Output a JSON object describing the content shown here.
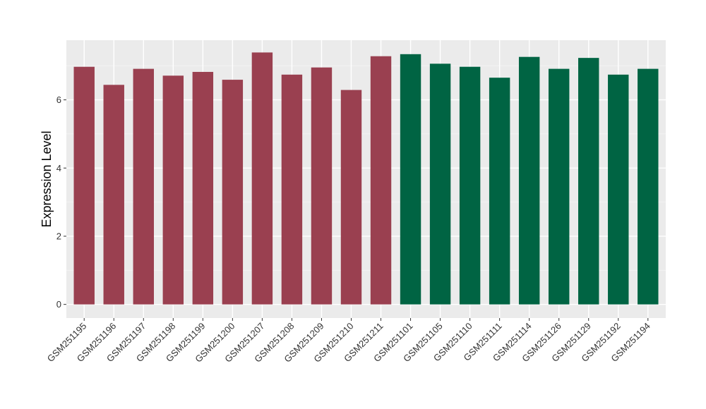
{
  "chart_data": {
    "type": "bar",
    "title": "",
    "xlabel": "",
    "ylabel": "Expression Level",
    "ylim": [
      -0.4,
      7.75
    ],
    "yticks": [
      0,
      2,
      4,
      6
    ],
    "grid": true,
    "background": "#EBEBEB",
    "categories": [
      "GSM251195",
      "GSM251196",
      "GSM251197",
      "GSM251198",
      "GSM251199",
      "GSM251200",
      "GSM251207",
      "GSM251208",
      "GSM251209",
      "GSM251210",
      "GSM251211",
      "GSM251101",
      "GSM251105",
      "GSM251110",
      "GSM251111",
      "GSM251114",
      "GSM251126",
      "GSM251129",
      "GSM251192",
      "GSM251194"
    ],
    "values": [
      6.97,
      6.44,
      6.91,
      6.71,
      6.82,
      6.59,
      7.39,
      6.74,
      6.95,
      6.29,
      7.28,
      7.34,
      7.06,
      6.97,
      6.65,
      7.26,
      6.91,
      7.23,
      6.74,
      6.91
    ],
    "groups": [
      "a",
      "a",
      "a",
      "a",
      "a",
      "a",
      "a",
      "a",
      "a",
      "a",
      "a",
      "b",
      "b",
      "b",
      "b",
      "b",
      "b",
      "b",
      "b",
      "b"
    ],
    "group_colors": {
      "a": "#9A4050",
      "b": "#006443"
    }
  }
}
